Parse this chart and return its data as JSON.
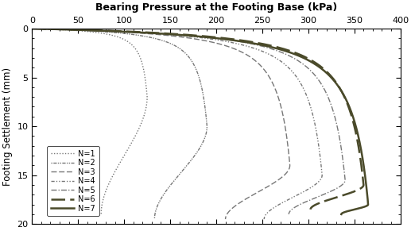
{
  "title": "Bearing Pressure at the Footing Base (kPa)",
  "ylabel": "Footing Settlement (mm)",
  "xlim": [
    0,
    400
  ],
  "ylim": [
    20,
    0
  ],
  "xticks": [
    0,
    50,
    100,
    150,
    200,
    250,
    300,
    350,
    400
  ],
  "yticks": [
    0,
    5,
    10,
    15,
    20
  ],
  "background_color": "#ffffff",
  "series": [
    {
      "label": "N=1",
      "ultimate_pressure": 125,
      "ultimate_settlement": 7.0,
      "post_drop": 0.6,
      "post_settle_extra": 12.0,
      "initial_stiffness": 80,
      "linestyle": "dotted",
      "color": "#777777",
      "linewidth": 1.0
    },
    {
      "label": "N=2",
      "ultimate_pressure": 190,
      "ultimate_settlement": 10.0,
      "post_drop": 0.7,
      "post_settle_extra": 9.5,
      "initial_stiffness": 100,
      "linestyle": "densely_dotdash",
      "color": "#777777",
      "linewidth": 1.0
    },
    {
      "label": "N=3",
      "ultimate_pressure": 280,
      "ultimate_settlement": 14.0,
      "post_drop": 0.75,
      "post_settle_extra": 5.5,
      "initial_stiffness": 120,
      "linestyle": "dashed",
      "color": "#777777",
      "linewidth": 1.0
    },
    {
      "label": "N=4",
      "ultimate_pressure": 315,
      "ultimate_settlement": 15.0,
      "post_drop": 0.8,
      "post_settle_extra": 4.5,
      "initial_stiffness": 140,
      "linestyle": "dashdotdot",
      "color": "#777777",
      "linewidth": 1.0
    },
    {
      "label": "N=5",
      "ultimate_pressure": 340,
      "ultimate_settlement": 15.5,
      "post_drop": 0.82,
      "post_settle_extra": 3.5,
      "initial_stiffness": 150,
      "linestyle": "dashdot",
      "color": "#777777",
      "linewidth": 1.0
    },
    {
      "label": "N=6",
      "ultimate_pressure": 360,
      "ultimate_settlement": 16.0,
      "post_drop": 0.84,
      "post_settle_extra": 2.5,
      "initial_stiffness": 160,
      "linestyle": "long_dash",
      "color": "#4a4a2a",
      "linewidth": 1.8
    },
    {
      "label": "N=7",
      "ultimate_pressure": 365,
      "ultimate_settlement": 18.0,
      "post_drop": 0.92,
      "post_settle_extra": 1.0,
      "initial_stiffness": 165,
      "linestyle": "solid",
      "color": "#4a4a2a",
      "linewidth": 1.8
    }
  ]
}
